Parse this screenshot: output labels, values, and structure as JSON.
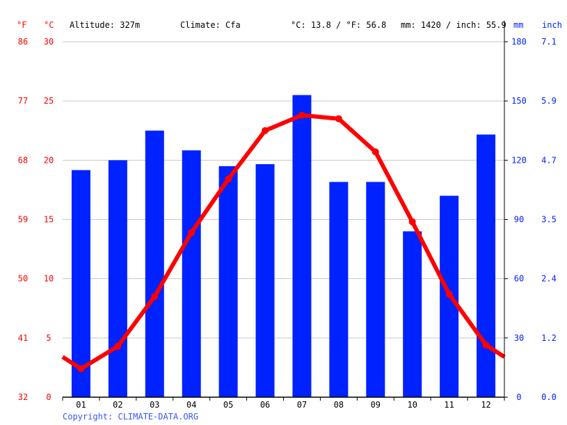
{
  "header": {
    "unit_f": "°F",
    "unit_c": "°C",
    "altitude": "Altitude: 327m",
    "climate": "Climate: Cfa",
    "avg_temp": "°C: 13.8 / °F: 56.8",
    "precip": "mm: 1420 / inch: 55.9",
    "unit_mm": "mm",
    "unit_inch": "inch"
  },
  "copyright": "Copyright: CLIMATE-DATA.ORG",
  "colors": {
    "temperature": "#ff0000",
    "precipitation": "#0022ff",
    "grid": "#c8c8c8"
  },
  "chart_data": {
    "type": "bar+line",
    "categories": [
      "01",
      "02",
      "03",
      "04",
      "05",
      "06",
      "07",
      "08",
      "09",
      "10",
      "11",
      "12"
    ],
    "series": [
      {
        "name": "mm",
        "type": "bar",
        "axis": "right",
        "values": [
          115,
          120,
          135,
          125,
          117,
          118,
          153,
          109,
          109,
          84,
          102,
          133
        ]
      },
      {
        "name": "°C",
        "type": "line",
        "axis": "left",
        "values": [
          2.4,
          4.3,
          8.5,
          13.9,
          18.4,
          22.5,
          23.8,
          23.5,
          20.7,
          14.8,
          8.7,
          4.4
        ]
      }
    ],
    "y_left": {
      "label": "°C",
      "range": [
        0,
        30
      ],
      "ticks": [
        "0",
        "5",
        "10",
        "15",
        "20",
        "25",
        "30"
      ]
    },
    "y_left_f": {
      "label": "°F",
      "ticks": [
        "32",
        "41",
        "50",
        "59",
        "68",
        "77",
        "86"
      ]
    },
    "y_right": {
      "label": "mm",
      "range": [
        0,
        180
      ],
      "ticks": [
        "0",
        "30",
        "60",
        "90",
        "120",
        "150",
        "180"
      ]
    },
    "y_right_inch": {
      "label": "inch",
      "ticks": [
        "0.0",
        "1.2",
        "2.4",
        "3.5",
        "4.7",
        "5.9",
        "7.1"
      ]
    },
    "grid": true
  }
}
